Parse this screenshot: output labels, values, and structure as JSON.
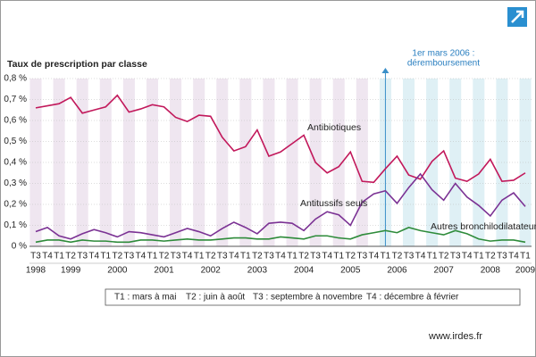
{
  "chart_data": {
    "type": "line",
    "y_axis_label": "Taux de prescription par classe",
    "annotation": [
      "1er mars 2006 :",
      "déremboursement"
    ],
    "annotation_category": 30,
    "categories": [
      "T3",
      "T4",
      "T1",
      "T2",
      "T3",
      "T4",
      "T1",
      "T2",
      "T3",
      "T4",
      "T1",
      "T2",
      "T3",
      "T4",
      "T1",
      "T2",
      "T3",
      "T4",
      "T1",
      "T2",
      "T3",
      "T4",
      "T1",
      "T2",
      "T3",
      "T4",
      "T1",
      "T2",
      "T3",
      "T4",
      "T1",
      "T2",
      "T3",
      "T4",
      "T1",
      "T2",
      "T3",
      "T4",
      "T1",
      "T2",
      "T3",
      "T4",
      "T1"
    ],
    "year_categories": [
      1998,
      null,
      null,
      1999,
      null,
      null,
      null,
      2000,
      null,
      null,
      null,
      2001,
      null,
      null,
      null,
      2002,
      null,
      null,
      null,
      2003,
      null,
      null,
      null,
      2004,
      null,
      null,
      null,
      2005,
      null,
      null,
      null,
      2006,
      null,
      null,
      null,
      2007,
      null,
      null,
      null,
      2008,
      null,
      null,
      2009
    ],
    "series": [
      {
        "name": "Antibiotiques",
        "color": "#c2185b",
        "values": [
          0.66,
          0.67,
          0.68,
          0.71,
          0.635,
          0.65,
          0.665,
          0.72,
          0.64,
          0.655,
          0.675,
          0.665,
          0.615,
          0.595,
          0.625,
          0.62,
          0.52,
          0.455,
          0.475,
          0.555,
          0.43,
          0.45,
          0.49,
          0.53,
          0.4,
          0.35,
          0.38,
          0.45,
          0.31,
          0.305,
          0.37,
          0.43,
          0.34,
          0.32,
          0.405,
          0.455,
          0.325,
          0.31,
          0.345,
          0.415,
          0.31,
          0.315,
          0.35
        ]
      },
      {
        "name": "Antitussifs seuls",
        "color": "#7b3294",
        "values": [
          0.07,
          0.09,
          0.05,
          0.035,
          0.06,
          0.08,
          0.065,
          0.045,
          0.07,
          0.065,
          0.055,
          0.045,
          0.065,
          0.085,
          0.07,
          0.05,
          0.085,
          0.115,
          0.09,
          0.06,
          0.11,
          0.115,
          0.11,
          0.075,
          0.13,
          0.165,
          0.15,
          0.1,
          0.21,
          0.25,
          0.265,
          0.205,
          0.28,
          0.345,
          0.27,
          0.22,
          0.3,
          0.235,
          0.195,
          0.145,
          0.22,
          0.255,
          0.19
        ]
      },
      {
        "name": "Autres bronchilodilatateurs",
        "color": "#2e8b3a",
        "values": [
          0.02,
          0.03,
          0.03,
          0.02,
          0.03,
          0.025,
          0.025,
          0.02,
          0.02,
          0.03,
          0.03,
          0.025,
          0.03,
          0.035,
          0.03,
          0.03,
          0.035,
          0.04,
          0.04,
          0.035,
          0.035,
          0.045,
          0.04,
          0.035,
          0.05,
          0.05,
          0.04,
          0.035,
          0.055,
          0.065,
          0.075,
          0.065,
          0.09,
          0.075,
          0.065,
          0.055,
          0.075,
          0.06,
          0.035,
          0.025,
          0.03,
          0.03,
          0.02
        ]
      }
    ],
    "ylim": [
      0,
      0.8
    ],
    "yticks": [
      {
        "value": 0,
        "label": "0 %"
      },
      {
        "value": 0.1,
        "label": "0,1 %"
      },
      {
        "value": 0.2,
        "label": "0,2 %"
      },
      {
        "value": 0.3,
        "label": "0,3 %"
      },
      {
        "value": 0.4,
        "label": "0,4 %"
      },
      {
        "value": 0.5,
        "label": "0,5 %"
      },
      {
        "value": 0.6,
        "label": "0,6 %"
      },
      {
        "value": 0.7,
        "label": "0,7 %"
      },
      {
        "value": 0.8,
        "label": "0,8 %"
      }
    ],
    "grid": true,
    "legend_note": [
      "T1 : mars à mai",
      "T2 : juin à août",
      "T3 : septembre à novembre",
      "T4 : décembre à  février"
    ],
    "source": "www.irdes.fr"
  }
}
